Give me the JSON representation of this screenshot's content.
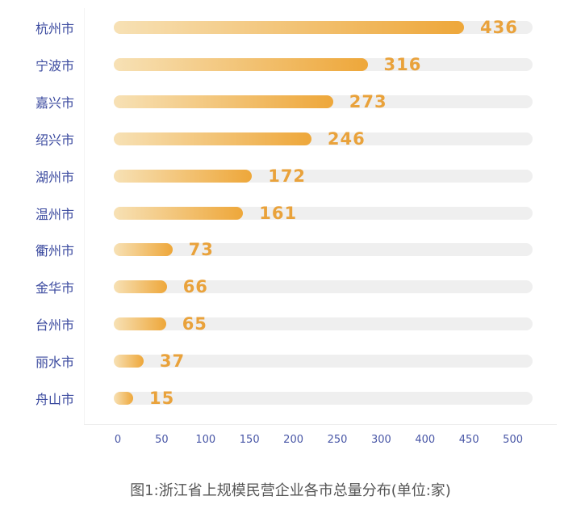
{
  "chart_data": {
    "type": "bar",
    "orientation": "horizontal",
    "categories": [
      "杭州市",
      "宁波市",
      "嘉兴市",
      "绍兴市",
      "湖州市",
      "温州市",
      "衢州市",
      "金华市",
      "台州市",
      "丽水市",
      "舟山市"
    ],
    "values": [
      436,
      316,
      273,
      246,
      172,
      161,
      73,
      66,
      65,
      37,
      15
    ],
    "x_ticks": [
      "0",
      "50",
      "100",
      "150",
      "200",
      "250",
      "300",
      "400",
      "450",
      "500"
    ],
    "xlim": [
      0,
      520
    ],
    "title": "图1:浙江省上规模民营企业各市总量分布(单位:家)",
    "grid": false,
    "colors": {
      "bar_start": "#f7e1b5",
      "bar_end": "#eea73a",
      "track": "#efefef",
      "label": "#e9a23b",
      "category": "#3b4a9f"
    }
  }
}
